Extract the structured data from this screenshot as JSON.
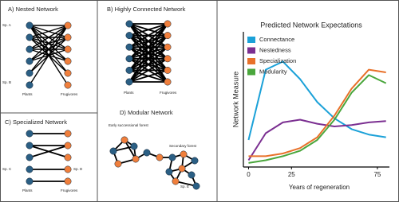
{
  "panels": [
    {
      "title": "A) Nested Network",
      "labels": [
        "Sp. A",
        "Sp. B",
        "Plants",
        "Frugivores"
      ]
    },
    {
      "title": "B) Highly Connected Network",
      "labels": [
        "Plants",
        "Frugivores"
      ]
    },
    {
      "title": "C) Specialized Network",
      "labels": [
        "Sp. C",
        "Sp. D",
        "Plants",
        "Frugivores"
      ]
    },
    {
      "title": "D) Modular Network",
      "labels": [
        "Early successional forest",
        "Secondary forest",
        "Sp. E"
      ]
    }
  ],
  "chart_data": {
    "type": "line",
    "title": "Predicted Network Expectations",
    "x_label": "Years of regeneration",
    "y_label": "Network Measure",
    "x": [
      0,
      10,
      20,
      30,
      40,
      50,
      60,
      70,
      80
    ],
    "xlim": [
      -3,
      82
    ],
    "xticks": [
      0,
      25,
      75
    ],
    "ylim": [
      0,
      100
    ],
    "series": [
      {
        "name": "Connectance",
        "color": "#1ba1d8",
        "values": [
          20,
          72,
          78,
          65,
          48,
          36,
          28,
          24,
          22
        ]
      },
      {
        "name": "Nestedness",
        "color": "#7b2f91",
        "values": [
          5,
          25,
          33,
          35,
          32,
          30,
          31,
          33,
          34
        ]
      },
      {
        "name": "Specialization",
        "color": "#e8712a",
        "values": [
          8,
          8,
          10,
          14,
          22,
          38,
          58,
          72,
          70
        ]
      },
      {
        "name": "Modularity",
        "color": "#4aa63c",
        "values": [
          3,
          5,
          8,
          12,
          20,
          35,
          55,
          68,
          62
        ]
      }
    ]
  }
}
